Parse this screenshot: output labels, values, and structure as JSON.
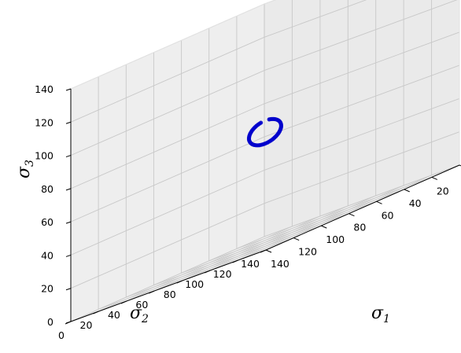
{
  "chart_data": {
    "type": "scatter3d",
    "title": "",
    "axes": {
      "x": {
        "label": "σ",
        "label_sub": "1",
        "range": [
          0,
          140
        ],
        "ticks": [
          0,
          20,
          40,
          60,
          80,
          100,
          120,
          140
        ]
      },
      "y": {
        "label": "σ",
        "label_sub": "2",
        "range": [
          0,
          140
        ],
        "ticks": [
          0,
          20,
          40,
          60,
          80,
          100,
          120,
          140
        ]
      },
      "z": {
        "label": "σ",
        "label_sub": "3",
        "range": [
          0,
          140
        ],
        "ticks": [
          0,
          20,
          40,
          60,
          80,
          100,
          120,
          140
        ]
      }
    },
    "grid": true,
    "view": "isometric",
    "series": [
      {
        "color": "#0000cc",
        "marker": "circle",
        "shape": "ring of points lying in the deviatoric plane around the hydrostatic axis",
        "center": [
          66.7,
          66.7,
          66.7
        ],
        "radius": 8.2,
        "open_angle_deg": 30,
        "count": 60
      }
    ]
  }
}
